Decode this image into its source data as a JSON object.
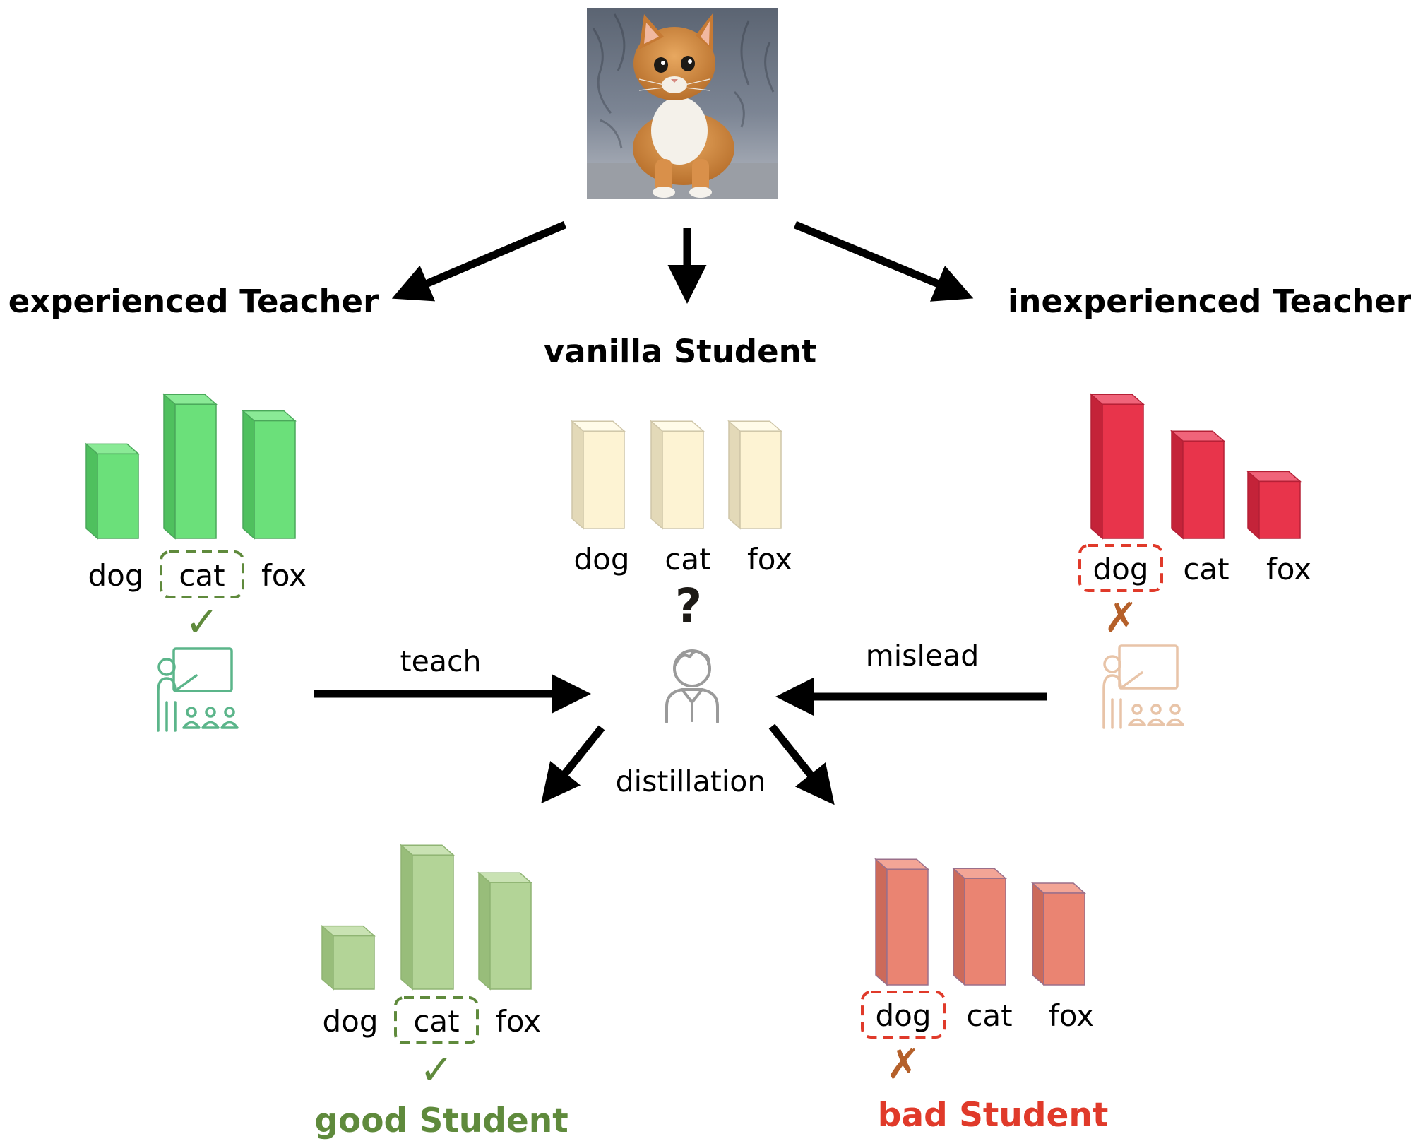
{
  "image": {
    "subject": "kitten photo"
  },
  "labels": {
    "experienced_teacher": "experienced Teacher",
    "vanilla_student": "vanilla Student",
    "inexperienced_teacher": "inexperienced Teacher",
    "teach": "teach",
    "mislead": "mislead",
    "distillation": "distillation",
    "good_student": "good Student",
    "bad_student": "bad Student",
    "question": "?",
    "check": "✓",
    "cross": "✗"
  },
  "categories": [
    "dog",
    "cat",
    "fox"
  ],
  "groups": [
    {
      "id": "exp-teacher",
      "values": [
        0.46,
        0.73,
        0.64
      ],
      "highlight": 1,
      "verdict": "check",
      "color": "#6be07a",
      "side": "#4fc05e",
      "top": "#8aea96",
      "edge": "#4aa85a",
      "box": "#5f8a3c"
    },
    {
      "id": "vanilla",
      "values": [
        0.53,
        0.53,
        0.53
      ],
      "highlight": -1,
      "verdict": "question",
      "color": "#fdf3d3",
      "side": "#e3d9b8",
      "top": "#fffbe9",
      "edge": "#cfc6a8",
      "box": "#000000"
    },
    {
      "id": "inexp-teacher",
      "values": [
        0.73,
        0.53,
        0.31
      ],
      "highlight": 0,
      "verdict": "cross",
      "color": "#e8344b",
      "side": "#c42339",
      "top": "#f0647a",
      "edge": "#b52036",
      "box": "#e03a2a"
    },
    {
      "id": "good-student",
      "values": [
        0.29,
        0.73,
        0.58
      ],
      "highlight": 1,
      "verdict": "check",
      "color": "#b3d497",
      "side": "#98bd7a",
      "top": "#c9e2b3",
      "edge": "#8fb473",
      "box": "#5f8a3c"
    },
    {
      "id": "bad-student",
      "values": [
        0.63,
        0.58,
        0.5
      ],
      "highlight": 0,
      "verdict": "cross",
      "color": "#ea8472",
      "side": "#cc6a5a",
      "top": "#f3a596",
      "edge": "#9a6f8a",
      "box": "#e03a2a"
    }
  ],
  "colors": {
    "arrow": "#000000",
    "good": "#5f8a3c",
    "bad": "#e03a2a",
    "check": "#5f8a3c",
    "cross": "#b5602a",
    "teacher_icon_good": "#5bb58a",
    "teacher_icon_bad": "#e8c4a8",
    "student_icon": "#9a9a9a"
  },
  "icons": [
    "teacher-icon",
    "student-icon",
    "check-icon",
    "cross-icon",
    "question-icon"
  ]
}
